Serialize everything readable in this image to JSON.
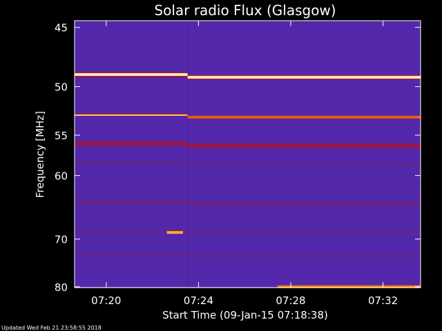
{
  "chart_data": {
    "type": "heatmap",
    "title": "Solar radio Flux (Glasgow)",
    "xlabel": "Start Time (09-Jan-15 07:18:38)",
    "ylabel": "Frequency [MHz]",
    "footer": "Updated Wed Feb 21 23:58:55 2018",
    "x_tick_labels": [
      "07:20",
      "07:24",
      "07:28",
      "07:32"
    ],
    "x_ticks_minutes": [
      1.37,
      5.37,
      9.37,
      13.37
    ],
    "x_range_minutes": [
      0,
      15.0
    ],
    "y_ticks": [
      45,
      50,
      55,
      60,
      70,
      80
    ],
    "y_tick_labels": [
      "45",
      "50",
      "55",
      "60",
      "70",
      "80"
    ],
    "y_range_mhz": [
      44.5,
      80.2
    ],
    "y_scale": "reciprocal",
    "colormap": [
      "#000010",
      "#000060",
      "#1010c0",
      "#3030e0",
      "#5028b0",
      "#602890",
      "#802070",
      "#b01030",
      "#e04000",
      "#ff9000",
      "#ffe080",
      "#ffffff"
    ],
    "background_level": 0.38,
    "bands": [
      {
        "mhz": 45.5,
        "width": 1.4,
        "level": 0.1
      },
      {
        "mhz": 46.8,
        "width": 1.2,
        "level": 0.18
      },
      {
        "mhz": 48.9,
        "width": 0.35,
        "level": 1.0
      },
      {
        "mhz": 49.5,
        "width": 0.7,
        "level": 0.2
      },
      {
        "mhz": 51.0,
        "width": 0.8,
        "level": 0.26
      },
      {
        "mhz": 52.8,
        "width": 0.25,
        "level": 0.9
      },
      {
        "mhz": 56.0,
        "width": 0.8,
        "level": 0.62
      },
      {
        "mhz": 58.3,
        "width": 0.5,
        "level": 0.5
      },
      {
        "mhz": 63.8,
        "width": 0.5,
        "level": 0.58
      },
      {
        "mhz": 68.5,
        "width": 0.6,
        "level": 0.5
      },
      {
        "mhz": 73.0,
        "width": 0.8,
        "level": 0.5
      },
      {
        "mhz": 79.4,
        "width": 0.8,
        "level": 0.3
      }
    ],
    "step_minutes": 4.9,
    "bursts": [
      {
        "start_min": 4.0,
        "end_min": 4.7,
        "mhz": 68.8,
        "level": 0.85
      },
      {
        "start_min": 8.8,
        "end_min": 15.0,
        "mhz": 80.0,
        "level": 0.8
      }
    ]
  }
}
